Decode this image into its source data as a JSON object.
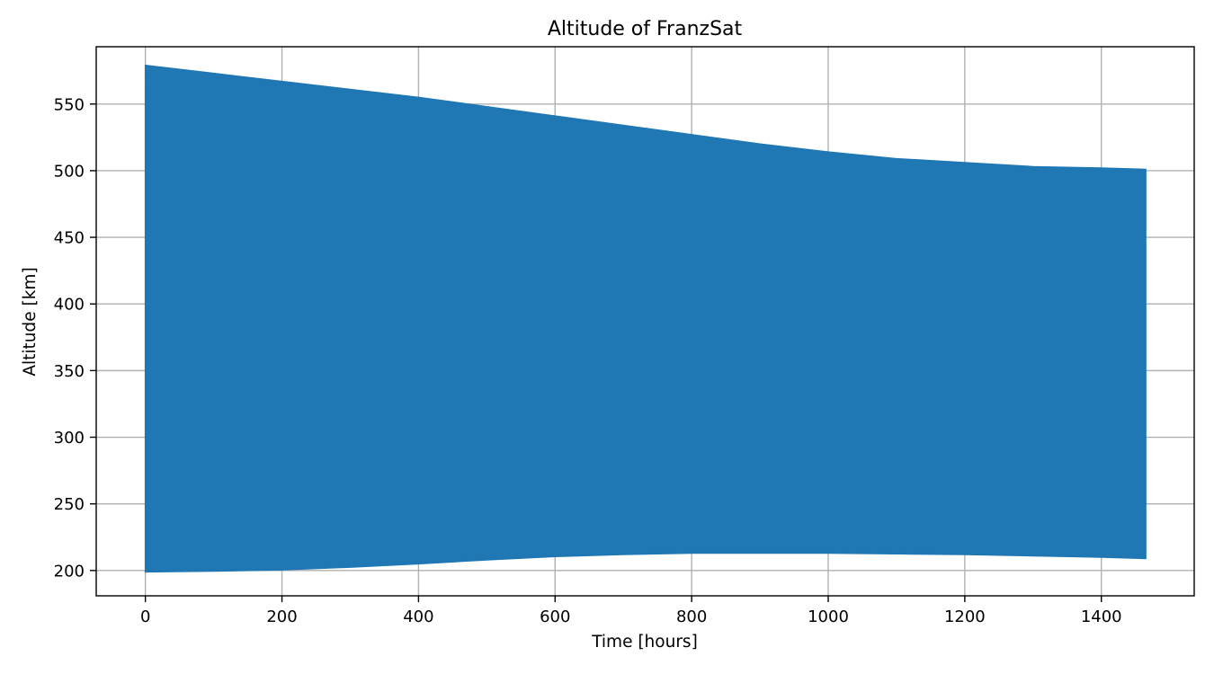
{
  "chart_data": {
    "type": "area",
    "title": "Altitude of FranzSat",
    "xlabel": "Time [hours]",
    "ylabel": "Altitude [km]",
    "xlim": [
      -72,
      1536
    ],
    "ylim": [
      181,
      593
    ],
    "xticks": [
      0,
      200,
      400,
      600,
      800,
      1000,
      1200,
      1400
    ],
    "yticks": [
      200,
      250,
      300,
      350,
      400,
      450,
      500,
      550
    ],
    "grid": true,
    "series": [
      {
        "color": "#1f77b4",
        "x": [
          0,
          100,
          200,
          300,
          400,
          500,
          600,
          700,
          800,
          900,
          1000,
          1100,
          1200,
          1300,
          1400,
          1465
        ],
        "upper": [
          579,
          573,
          567,
          561,
          555,
          548,
          541,
          534,
          527,
          520,
          514,
          509,
          506,
          503,
          502,
          501
        ],
        "lower": [
          199,
          199.5,
          200.5,
          202.5,
          205,
          208,
          210.5,
          212,
          213,
          213,
          213,
          212.5,
          212,
          211,
          210,
          209
        ]
      }
    ]
  }
}
